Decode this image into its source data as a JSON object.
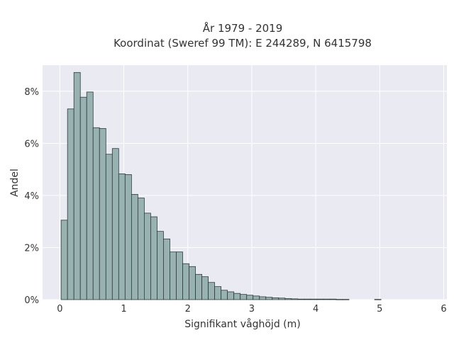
{
  "chart_data": {
    "type": "bar",
    "title_lines": [
      "År 1979 - 2019",
      "Koordinat (Sweref 99 TM): E 244289, N 6415798"
    ],
    "xlabel": "Signifikant våghöjd (m)",
    "ylabel": "Andel",
    "xlim": [
      -0.27,
      6.05
    ],
    "ylim": [
      0,
      9.0
    ],
    "x_ticks": [
      {
        "value": 0,
        "label": "0"
      },
      {
        "value": 1,
        "label": "1"
      },
      {
        "value": 2,
        "label": "2"
      },
      {
        "value": 3,
        "label": "3"
      },
      {
        "value": 4,
        "label": "4"
      },
      {
        "value": 5,
        "label": "5"
      },
      {
        "value": 6,
        "label": "6"
      }
    ],
    "y_ticks": [
      {
        "value": 0,
        "label": "0%"
      },
      {
        "value": 2,
        "label": "2%"
      },
      {
        "value": 4,
        "label": "4%"
      },
      {
        "value": 6,
        "label": "6%"
      },
      {
        "value": 8,
        "label": "8%"
      }
    ],
    "bin_width": 0.1,
    "bin_start": 0.02,
    "values": [
      3.05,
      7.32,
      8.72,
      7.77,
      7.97,
      6.6,
      6.57,
      5.58,
      5.8,
      4.83,
      4.8,
      4.04,
      3.9,
      3.32,
      3.18,
      2.62,
      2.33,
      1.83,
      1.83,
      1.38,
      1.27,
      0.97,
      0.88,
      0.66,
      0.5,
      0.36,
      0.3,
      0.24,
      0.2,
      0.17,
      0.14,
      0.11,
      0.09,
      0.07,
      0.06,
      0.04,
      0.03,
      0.02,
      0.02,
      0.02,
      0.02,
      0.02,
      0.02,
      0.01,
      0.01,
      0,
      0,
      0,
      0,
      0.01
    ],
    "grid": true,
    "bar_color": "#98b2b1",
    "bar_edge_color": "#2e3a3a",
    "plot_background": "#eaeaf2",
    "grid_color": "#ffffff"
  }
}
